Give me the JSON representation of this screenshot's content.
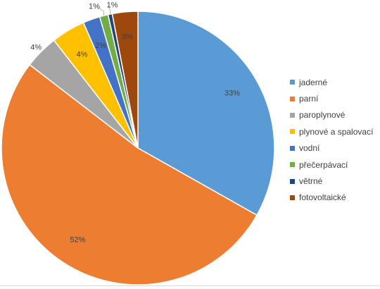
{
  "chart_data": {
    "type": "pie",
    "title": "",
    "categories": [
      "jaderné",
      "parní",
      "paroplynové",
      "plynové a spalovací",
      "vodní",
      "přečerpávací",
      "větrné",
      "fotovoltaické"
    ],
    "values": [
      33,
      52,
      4,
      4,
      2,
      1,
      0.5,
      3
    ],
    "data_labels": [
      "33%",
      "52%",
      "4%",
      "4%",
      "2%",
      "1%",
      "1%",
      "3%"
    ],
    "colors": [
      "#5B9BD5",
      "#ED7D31",
      "#A5A5A5",
      "#FFC000",
      "#4472C4",
      "#70AD47",
      "#264478",
      "#9E480E"
    ],
    "legend_position": "right",
    "grid": false
  }
}
